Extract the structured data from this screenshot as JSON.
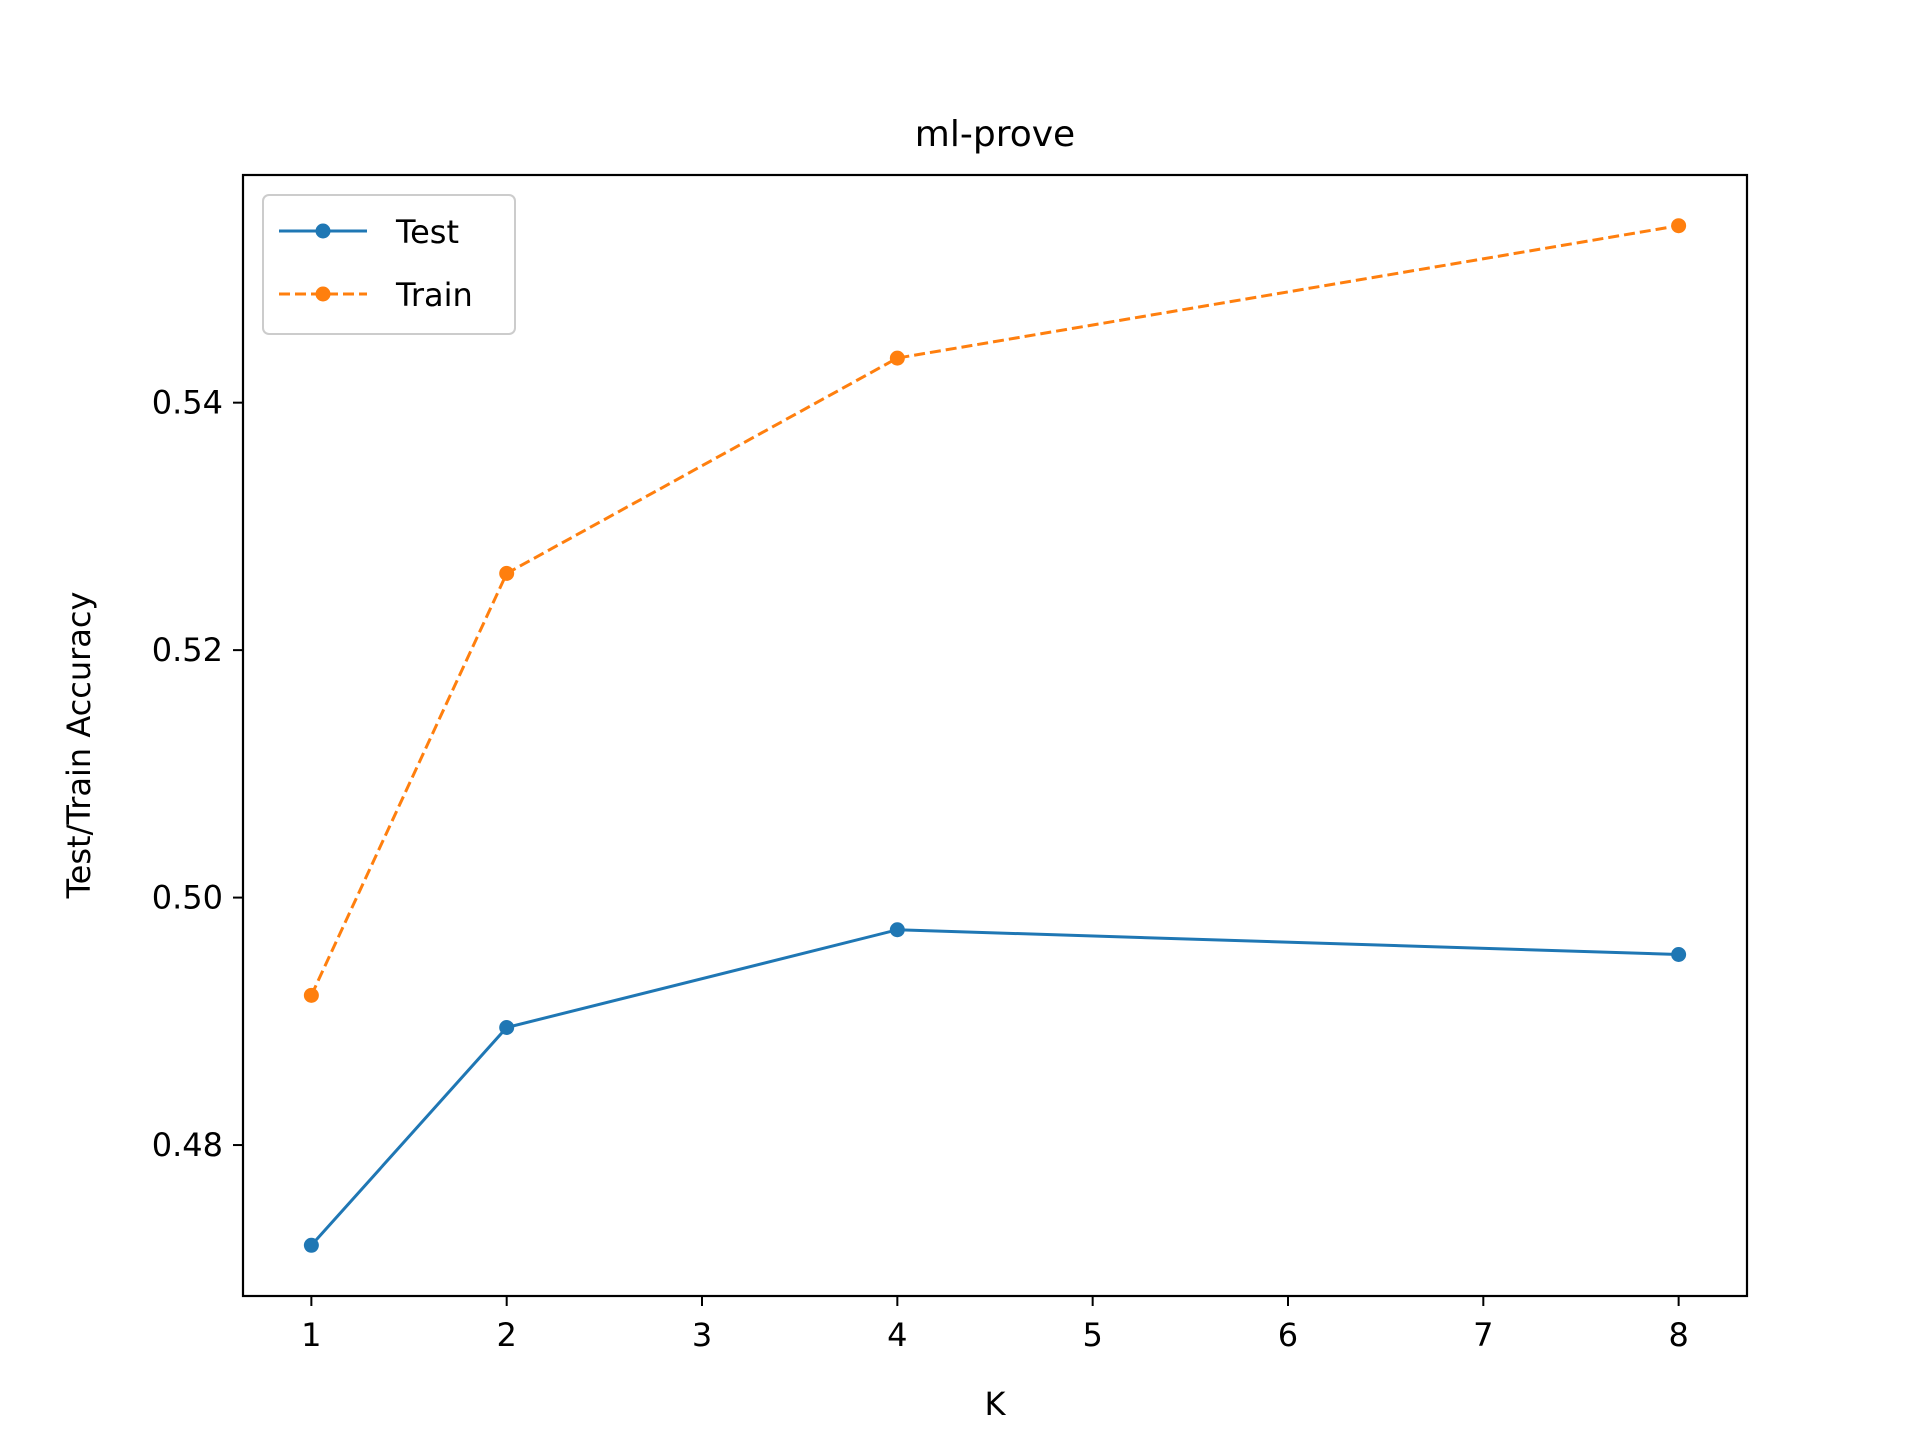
{
  "chart_data": {
    "type": "line",
    "title": "ml-prove",
    "xlabel": "K",
    "ylabel": "Test/Train Accuracy",
    "xlim": [
      0.65,
      8.35
    ],
    "ylim": [
      0.4678,
      0.5584
    ],
    "xticks": [
      1,
      2,
      3,
      4,
      5,
      6,
      7,
      8
    ],
    "yticks": [
      0.48,
      0.5,
      0.52,
      0.54
    ],
    "ytick_labels": [
      "0.48",
      "0.50",
      "0.52",
      "0.54"
    ],
    "grid": false,
    "legend_position": "top-left",
    "x": [
      1,
      2,
      4,
      8
    ],
    "series": [
      {
        "name": "Test",
        "values": [
          0.4719,
          0.4895,
          0.4974,
          0.4954
        ],
        "color": "#1f77b4",
        "line_style": "solid",
        "marker": "circle"
      },
      {
        "name": "Train",
        "values": [
          0.4921,
          0.5262,
          0.5436,
          0.5543
        ],
        "color": "#ff7f0e",
        "line_style": "dashed",
        "marker": "circle"
      }
    ]
  }
}
